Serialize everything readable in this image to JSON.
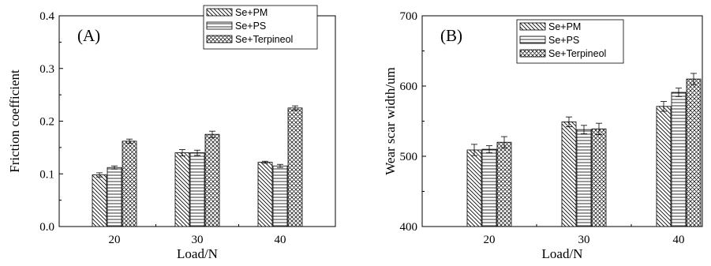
{
  "chart_data": [
    {
      "type": "bar",
      "panel_label": "(A)",
      "categories": [
        "20",
        "30",
        "40"
      ],
      "series": [
        {
          "name": "Se+PM",
          "values": [
            0.098,
            0.14,
            0.122
          ],
          "errors": [
            0.004,
            0.006,
            0.002
          ],
          "pattern": "diag-right"
        },
        {
          "name": "Se+PS",
          "values": [
            0.112,
            0.14,
            0.115
          ],
          "errors": [
            0.003,
            0.005,
            0.003
          ],
          "pattern": "horizontal"
        },
        {
          "name": "Se+Terpineol",
          "values": [
            0.162,
            0.175,
            0.225
          ],
          "errors": [
            0.004,
            0.006,
            0.004
          ],
          "pattern": "crosshatch"
        }
      ],
      "xlabel": "Load/N",
      "ylabel": "Friction coefficient",
      "ylim": [
        0.0,
        0.4
      ],
      "yticks": [
        "0.0",
        "0.1",
        "0.2",
        "0.3",
        "0.4"
      ],
      "grid": false,
      "legend": "top-right"
    },
    {
      "type": "bar",
      "panel_label": "(B)",
      "categories": [
        "20",
        "30",
        "40"
      ],
      "series": [
        {
          "name": "Se+PM",
          "values": [
            509,
            549,
            571
          ],
          "errors": [
            8,
            7,
            7
          ],
          "pattern": "diag-right"
        },
        {
          "name": "Se+PS",
          "values": [
            510,
            538,
            591
          ],
          "errors": [
            5,
            6,
            6
          ],
          "pattern": "horizontal"
        },
        {
          "name": "Se+Terpineol",
          "values": [
            520,
            539,
            610
          ],
          "errors": [
            8,
            8,
            8
          ],
          "pattern": "crosshatch"
        }
      ],
      "xlabel": "Load/N",
      "ylabel": "Wear scar width/um",
      "ylim": [
        400,
        700
      ],
      "yticks": [
        "400",
        "500",
        "600",
        "700"
      ],
      "grid": false,
      "legend": "top-left"
    }
  ]
}
